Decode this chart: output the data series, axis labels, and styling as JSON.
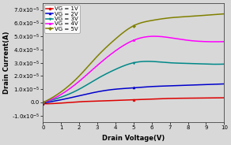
{
  "title": "",
  "xlabel": "Drain Voltage(V)",
  "ylabel": "Drain Current(A)",
  "xlim": [
    0,
    10
  ],
  "ylim": [
    -1.5e-05,
    7.5e-05
  ],
  "ytick_vals": [
    -1e-05,
    0.0,
    1e-05,
    2e-05,
    3e-05,
    4e-05,
    5e-05,
    6e-05,
    7e-05
  ],
  "ytick_labels": [
    "-1.0x10⁻⁵",
    "0.0",
    "1.0x10⁻⁵",
    "2.0x10⁻⁵",
    "3.0x10⁻⁵",
    "4.0x10⁻⁵",
    "5.0x10⁻⁵",
    "6.0x10⁻⁵",
    "7.0x10⁻⁵"
  ],
  "xticks": [
    0,
    1,
    2,
    3,
    4,
    5,
    6,
    7,
    8,
    9,
    10
  ],
  "curves": [
    {
      "label": "VG = 1V",
      "color": "#dd0000",
      "marker": "o",
      "points_x": [
        0,
        1,
        2,
        3,
        4,
        5,
        6,
        7,
        8,
        9,
        10
      ],
      "points_y": [
        -1e-06,
        -5e-07,
        5e-07,
        1e-06,
        1.5e-06,
        2e-06,
        2.5e-06,
        3e-06,
        3.2e-06,
        3.4e-06,
        3.5e-06
      ]
    },
    {
      "label": "VG = 2V",
      "color": "#0000cc",
      "marker": "^",
      "points_x": [
        0,
        1,
        2,
        3,
        4,
        5,
        6,
        7,
        8,
        9,
        10
      ],
      "points_y": [
        -5e-07,
        2e-06,
        5e-06,
        8e-06,
        1e-05,
        1.1e-05,
        1.2e-05,
        1.25e-05,
        1.3e-05,
        1.35e-05,
        1.4e-05
      ]
    },
    {
      "label": "VG = 3V",
      "color": "#008888",
      "marker": "v",
      "points_x": [
        0,
        1,
        2,
        3,
        4,
        5,
        6,
        7,
        8,
        9,
        10
      ],
      "points_y": [
        0,
        4e-06,
        1e-05,
        1.8e-05,
        2.5e-05,
        3e-05,
        3.1e-05,
        3e-05,
        2.95e-05,
        2.9e-05,
        2.9e-05
      ]
    },
    {
      "label": "VG = 4V",
      "color": "#ff00ff",
      "marker": "s",
      "points_x": [
        0,
        1,
        2,
        3,
        4,
        5,
        6,
        7,
        8,
        9,
        10
      ],
      "points_y": [
        0,
        6e-06,
        1.6e-05,
        2.8e-05,
        3.9e-05,
        4.7e-05,
        5e-05,
        4.9e-05,
        4.7e-05,
        4.6e-05,
        4.6e-05
      ]
    },
    {
      "label": "VG = 5V",
      "color": "#808000",
      "marker": "D",
      "points_x": [
        0,
        1,
        2,
        3,
        4,
        5,
        6,
        7,
        8,
        9,
        10
      ],
      "points_y": [
        0,
        8e-06,
        2e-05,
        3.5e-05,
        4.8e-05,
        5.8e-05,
        6.2e-05,
        6.4e-05,
        6.5e-05,
        6.6e-05,
        6.7e-05
      ]
    }
  ],
  "bg_color": "#d8d8d8",
  "legend_fontsize": 5.0,
  "axis_label_fontsize": 6.0,
  "tick_fontsize": 5.0,
  "linewidth": 1.1
}
